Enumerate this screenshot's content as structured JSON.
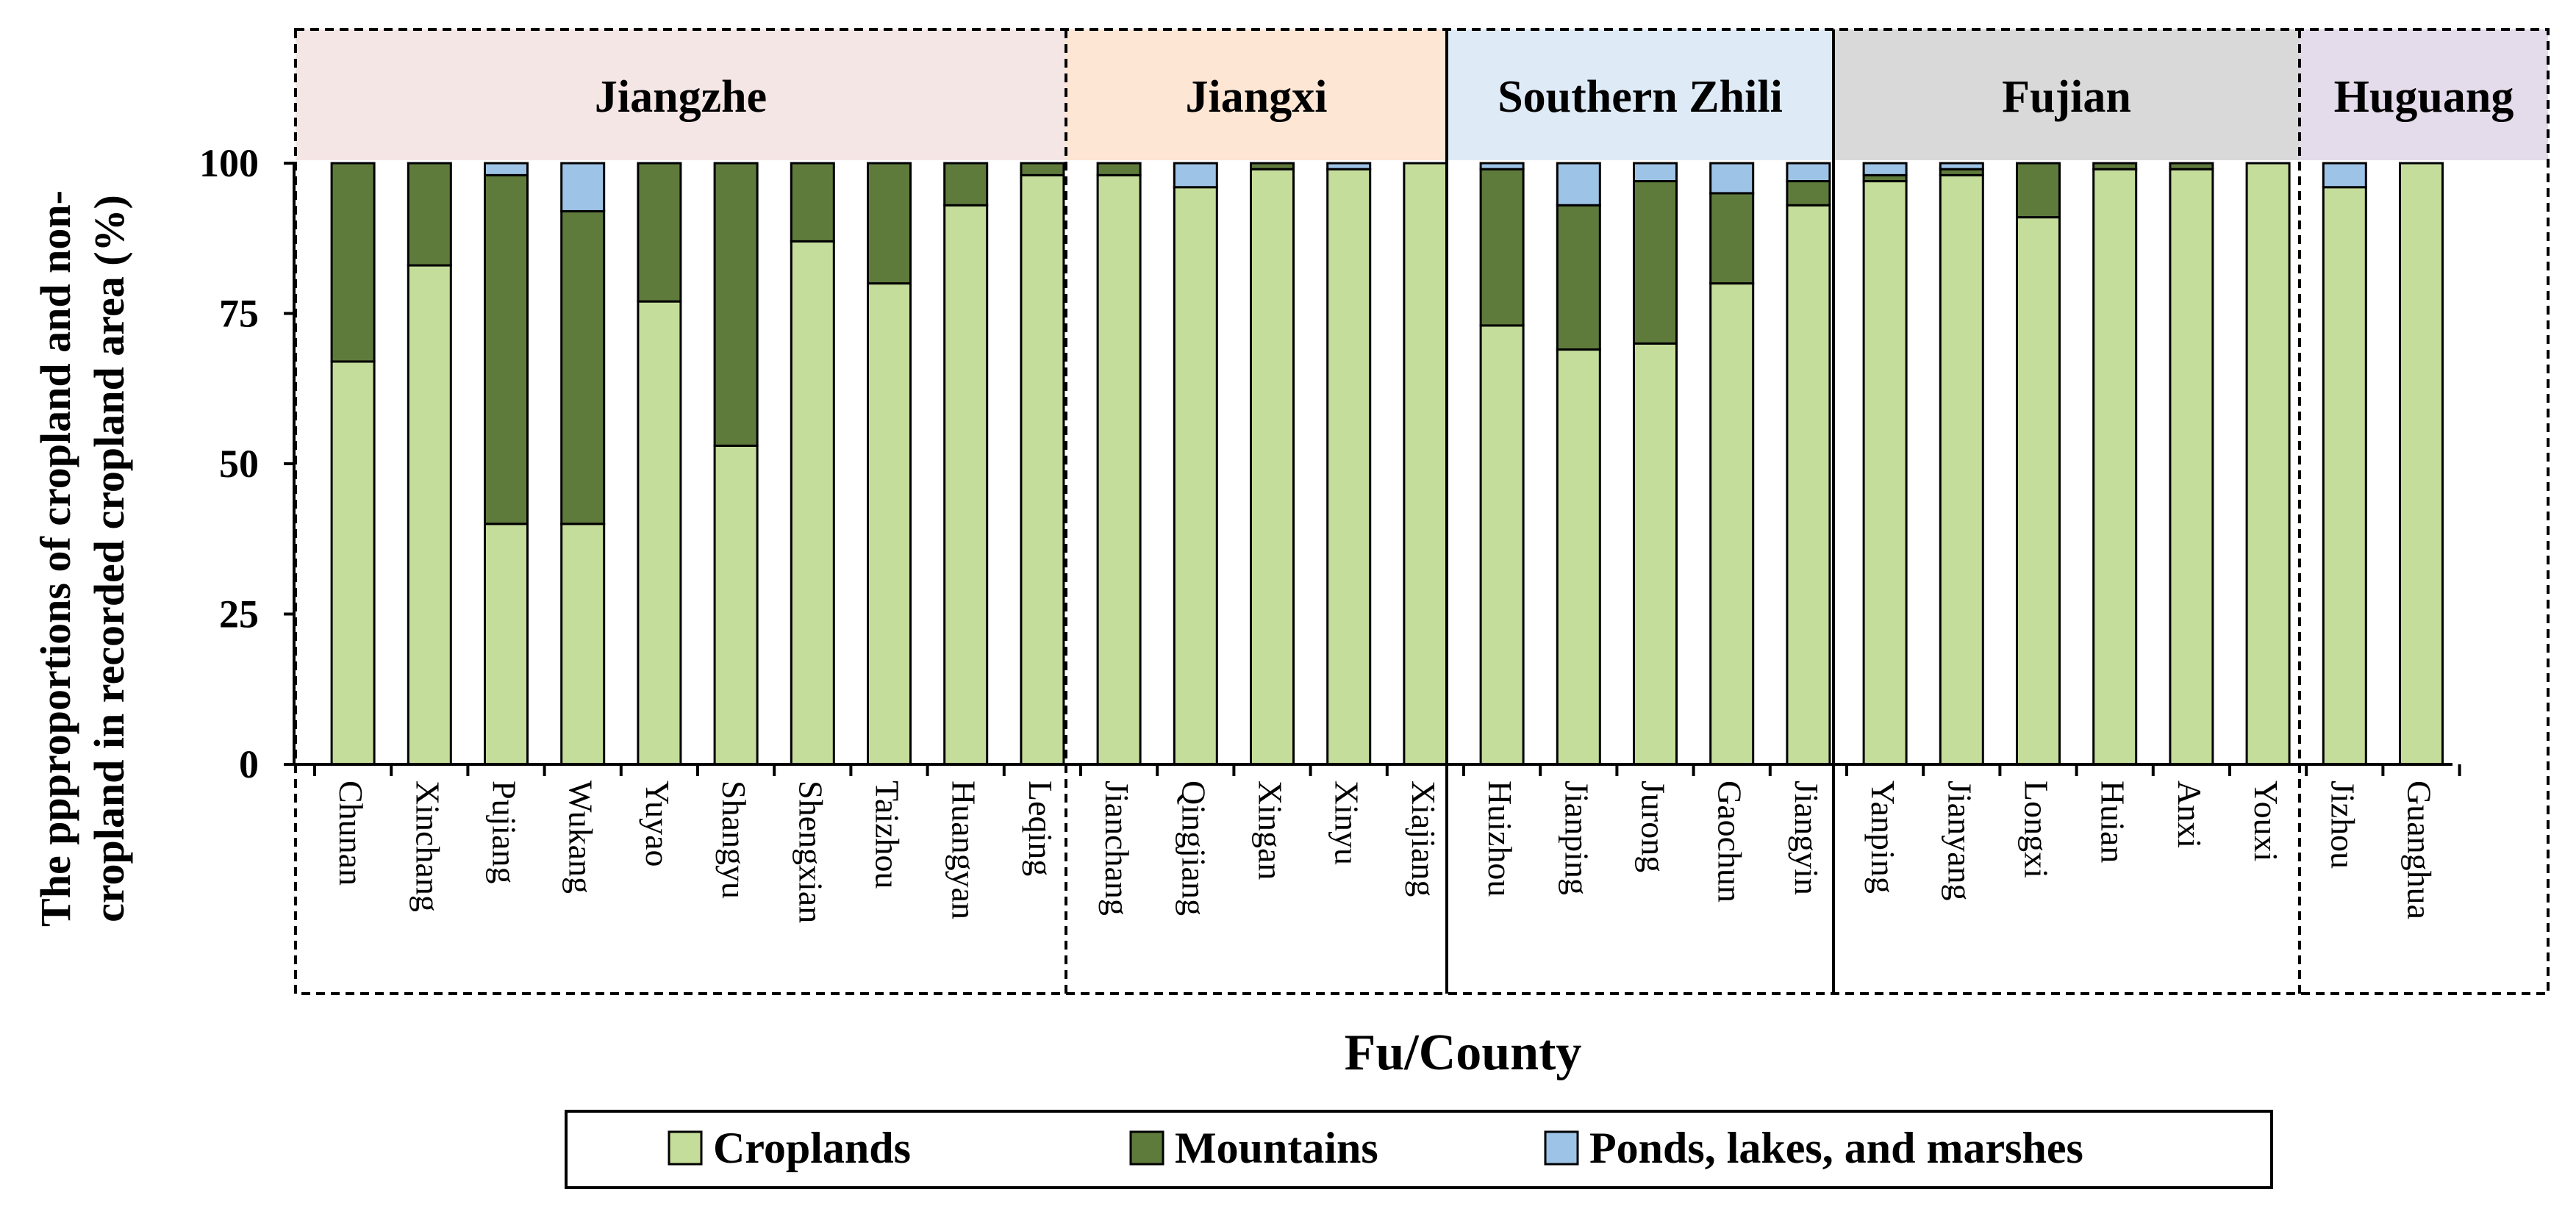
{
  "chart_data": {
    "type": "bar",
    "stacked": true,
    "ylabel_line1": "The ppproportions of cropland  and non-",
    "ylabel_line2": "cropland in recorded cropland area (%)",
    "xlabel": "Fu/County",
    "ylim": [
      0,
      100
    ],
    "yticks": [
      "0",
      "25",
      "50",
      "75",
      "100"
    ],
    "groups": [
      {
        "name": "Jiangzhe",
        "color": "#f5e6e6",
        "count": 10
      },
      {
        "name": "Jiangxi",
        "color": "#fde6d4",
        "count": 5
      },
      {
        "name": "Southern Zhili",
        "color": "#deebf7",
        "count": 5
      },
      {
        "name": "Fujian",
        "color": "#d9d9d9",
        "count": 6
      },
      {
        "name": "Huguang",
        "color": "#e4dcea",
        "count": 2
      }
    ],
    "categories": [
      "Chunan",
      "Xinchang",
      "Pujiang",
      "Wukang",
      "Yuyao",
      "Shangyu",
      "Shengxian",
      "Taizhou",
      "Huangyan",
      "Leqing",
      "Jianchang",
      "Qingjiang",
      "Xingan",
      "Xinyu",
      "Xiajiang",
      "Huizhou",
      "Jianping",
      "Jurong",
      "Gaochun",
      "Jiangyin",
      "Yanping",
      "Jianyang",
      "Longxi",
      "Huian",
      "Anxi",
      "Youxi",
      "Jizhou",
      "Guanghua"
    ],
    "series": [
      {
        "name": "Croplands",
        "color": "#c5dd9b",
        "values": [
          67,
          83,
          40,
          40,
          77,
          53,
          87,
          80,
          93,
          98,
          98,
          96,
          99,
          99,
          100,
          73,
          69,
          70,
          80,
          93,
          97,
          98,
          91,
          99,
          99,
          100,
          96,
          100
        ]
      },
      {
        "name": "Mountains",
        "color": "#5f7b3c",
        "values": [
          33,
          17,
          58,
          52,
          23,
          47,
          13,
          20,
          7,
          2,
          2,
          0,
          1,
          0,
          0,
          26,
          24,
          27,
          15,
          4,
          1,
          1,
          9,
          1,
          1,
          0,
          0,
          0
        ]
      },
      {
        "name": "Ponds, lakes, and marshes",
        "color": "#9dc3e6",
        "values": [
          0,
          0,
          2,
          8,
          0,
          0,
          0,
          0,
          0,
          0,
          0,
          4,
          0,
          1,
          0,
          1,
          7,
          3,
          5,
          3,
          2,
          1,
          0,
          0,
          0,
          0,
          4,
          0
        ]
      }
    ],
    "legend_position": "bottom-center"
  }
}
